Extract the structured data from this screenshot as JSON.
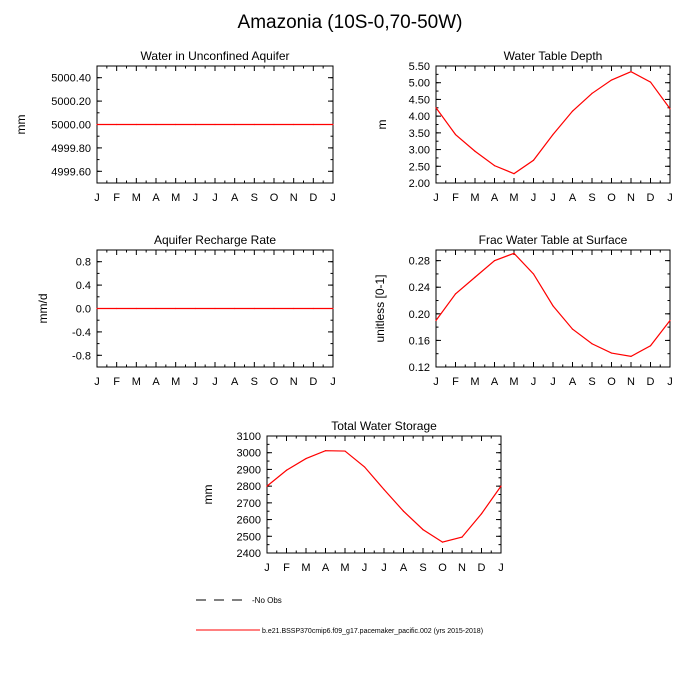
{
  "page_title": "Amazonia (10S-0,70-50W)",
  "legend": {
    "obs_label": "No Obs",
    "model_label": "b.e21.BSSP370cmip6.f09_g17.pacemaker_pacific.002 (yrs 2015-2018)",
    "model_color": "#ff0000",
    "obs_color": "#000000"
  },
  "chart_data": [
    {
      "id": "water-unconfined-aquifer",
      "type": "line",
      "title": "Water in Unconfined Aquifer",
      "xlabel": "",
      "ylabel": "mm",
      "categories": [
        "J",
        "F",
        "M",
        "A",
        "M",
        "J",
        "J",
        "A",
        "S",
        "O",
        "N",
        "D",
        "J"
      ],
      "ylim": [
        4999.5,
        5000.5
      ],
      "yticks": [
        4999.6,
        4999.8,
        5000.0,
        5000.2,
        5000.4
      ],
      "ytick_labels": [
        "4999.60",
        "4999.80",
        "5000.00",
        "5000.20",
        "5000.40"
      ],
      "series": [
        {
          "name": "b.e21.BSSP370cmip6.f09_g17.pacemaker_pacific.002",
          "color": "#ff0000",
          "values": [
            5000,
            5000,
            5000,
            5000,
            5000,
            5000,
            5000,
            5000,
            5000,
            5000,
            5000,
            5000,
            5000
          ]
        }
      ]
    },
    {
      "id": "water-table-depth",
      "type": "line",
      "title": "Water Table Depth",
      "xlabel": "",
      "ylabel": "m",
      "categories": [
        "J",
        "F",
        "M",
        "A",
        "M",
        "J",
        "J",
        "A",
        "S",
        "O",
        "N",
        "D",
        "J"
      ],
      "ylim": [
        2.0,
        5.5
      ],
      "yticks": [
        2.0,
        2.5,
        3.0,
        3.5,
        4.0,
        4.5,
        5.0,
        5.5
      ],
      "ytick_labels": [
        "2.00",
        "2.50",
        "3.00",
        "3.50",
        "4.00",
        "4.50",
        "5.00",
        "5.50"
      ],
      "series": [
        {
          "name": "b.e21.BSSP370cmip6.f09_g17.pacemaker_pacific.002",
          "color": "#ff0000",
          "values": [
            4.25,
            3.45,
            2.95,
            2.52,
            2.28,
            2.68,
            3.45,
            4.15,
            4.68,
            5.08,
            5.33,
            5.02,
            4.22
          ]
        }
      ]
    },
    {
      "id": "aquifer-recharge-rate",
      "type": "line",
      "title": "Aquifer Recharge Rate",
      "xlabel": "",
      "ylabel": "mm/d",
      "categories": [
        "J",
        "F",
        "M",
        "A",
        "M",
        "J",
        "J",
        "A",
        "S",
        "O",
        "N",
        "D",
        "J"
      ],
      "ylim": [
        -1.0,
        1.0
      ],
      "yticks": [
        -0.8,
        -0.4,
        0.0,
        0.4,
        0.8
      ],
      "ytick_labels": [
        "-0.8",
        "-0.4",
        "0.0",
        "0.4",
        "0.8"
      ],
      "series": [
        {
          "name": "b.e21.BSSP370cmip6.f09_g17.pacemaker_pacific.002",
          "color": "#ff0000",
          "values": [
            0,
            0,
            0,
            0,
            0,
            0,
            0,
            0,
            0,
            0,
            0,
            0,
            0
          ]
        }
      ]
    },
    {
      "id": "frac-water-table-surface",
      "type": "line",
      "title": "Frac Water Table at Surface",
      "xlabel": "",
      "ylabel": "unitless [0-1]",
      "categories": [
        "J",
        "F",
        "M",
        "A",
        "M",
        "J",
        "J",
        "A",
        "S",
        "O",
        "N",
        "D",
        "J"
      ],
      "ylim": [
        0.12,
        0.296
      ],
      "yticks": [
        0.12,
        0.16,
        0.2,
        0.24,
        0.28
      ],
      "ytick_labels": [
        "0.12",
        "0.16",
        "0.20",
        "0.24",
        "0.28"
      ],
      "series": [
        {
          "name": "b.e21.BSSP370cmip6.f09_g17.pacemaker_pacific.002",
          "color": "#ff0000",
          "values": [
            0.19,
            0.23,
            0.255,
            0.28,
            0.291,
            0.26,
            0.212,
            0.177,
            0.155,
            0.141,
            0.136,
            0.152,
            0.19
          ]
        }
      ]
    },
    {
      "id": "total-water-storage",
      "type": "line",
      "title": "Total Water Storage",
      "xlabel": "",
      "ylabel": "mm",
      "categories": [
        "J",
        "F",
        "M",
        "A",
        "M",
        "J",
        "J",
        "A",
        "S",
        "O",
        "N",
        "D",
        "J"
      ],
      "ylim": [
        2400,
        3100
      ],
      "yticks": [
        2400,
        2500,
        2600,
        2700,
        2800,
        2900,
        3000,
        3100
      ],
      "ytick_labels": [
        "2400",
        "2500",
        "2600",
        "2700",
        "2800",
        "2900",
        "3000",
        "3100"
      ],
      "series": [
        {
          "name": "b.e21.BSSP370cmip6.f09_g17.pacemaker_pacific.002",
          "color": "#ff0000",
          "values": [
            2800,
            2895,
            2965,
            3012,
            3010,
            2915,
            2780,
            2650,
            2540,
            2465,
            2495,
            2635,
            2800
          ]
        }
      ]
    }
  ]
}
